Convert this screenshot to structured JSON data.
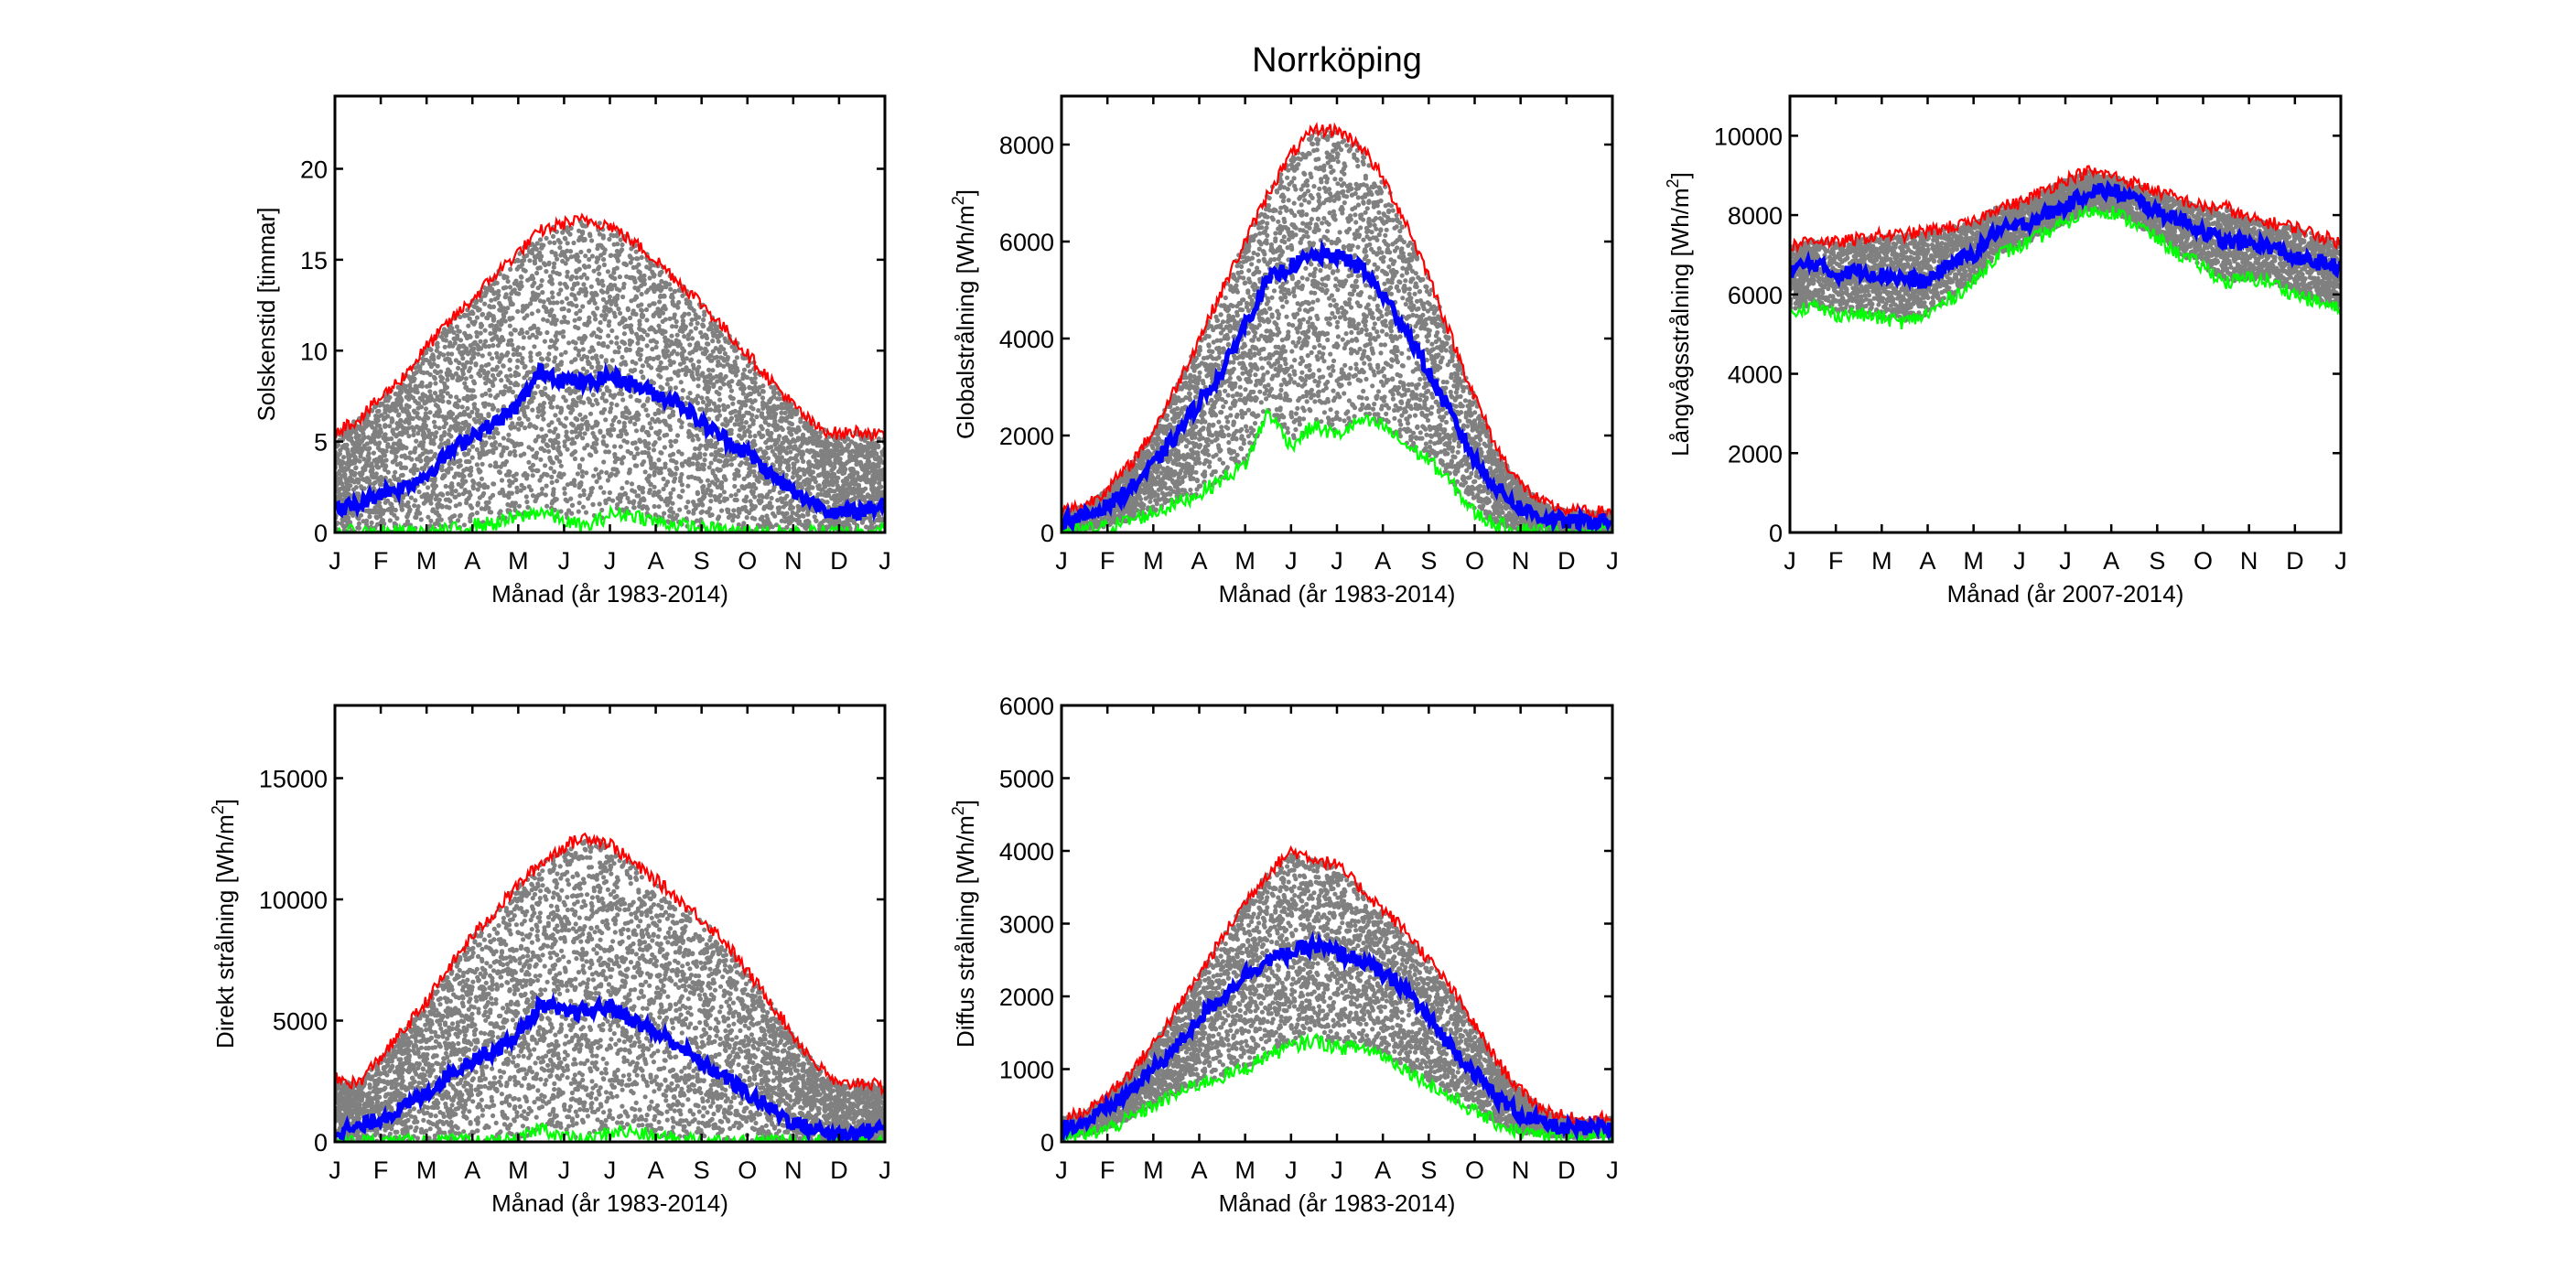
{
  "figure": {
    "title": "Norrköping"
  },
  "colors": {
    "scatter": "#808080",
    "max_line": "#ff0000",
    "mean_line": "#0000ff",
    "min_line": "#00ff00",
    "axes": "#000000"
  },
  "chart_data": [
    {
      "id": "solskenstid",
      "type": "scatter",
      "title": "",
      "xlabel": "Månad (år 1983-2014)",
      "ylabel": "Solskenstid [timmar]",
      "ylabel_sup": "",
      "xticks": [
        "J",
        "F",
        "M",
        "A",
        "M",
        "J",
        "J",
        "A",
        "S",
        "O",
        "N",
        "D",
        "J"
      ],
      "xlim": [
        0,
        12
      ],
      "ylim": [
        0,
        24
      ],
      "yticks": [
        0,
        5,
        10,
        15,
        20
      ],
      "grid": false,
      "series": [
        {
          "name": "max",
          "style": "line",
          "color": "#ff0000",
          "x": [
            0,
            0.5,
            1,
            1.5,
            2,
            2.5,
            3,
            3.5,
            4,
            4.5,
            5,
            5.5,
            6,
            6.5,
            7,
            7.5,
            8,
            8.5,
            9,
            9.5,
            10,
            10.5,
            11,
            11.5,
            12
          ],
          "values": [
            5.6,
            6.2,
            7.4,
            8.6,
            10.2,
            11.6,
            12.8,
            14.2,
            15.4,
            16.6,
            17.0,
            17.2,
            16.9,
            16.0,
            15.0,
            13.8,
            12.6,
            11.2,
            9.8,
            8.4,
            7.0,
            5.8,
            5.4,
            5.6,
            5.2
          ]
        },
        {
          "name": "mean",
          "style": "line",
          "color": "#0000ff",
          "x": [
            0,
            0.5,
            1,
            1.5,
            2,
            2.5,
            3,
            3.5,
            4,
            4.5,
            5,
            5.5,
            6,
            6.5,
            7,
            7.5,
            8,
            8.5,
            9,
            9.5,
            10,
            10.5,
            11,
            11.5,
            12
          ],
          "values": [
            1.3,
            1.5,
            2.2,
            2.5,
            3.2,
            4.4,
            5.4,
            6.0,
            7.0,
            8.9,
            8.4,
            8.2,
            8.6,
            8.2,
            7.6,
            7.2,
            6.0,
            5.2,
            4.4,
            3.2,
            2.2,
            1.6,
            1.0,
            1.2,
            1.6
          ]
        },
        {
          "name": "min",
          "style": "line",
          "color": "#00ff00",
          "x": [
            0,
            0.5,
            1,
            1.5,
            2,
            2.5,
            3,
            3.5,
            4,
            4.5,
            5,
            5.5,
            6,
            6.5,
            7,
            7.5,
            8,
            8.5,
            9,
            9.5,
            10,
            10.5,
            11,
            11.5,
            12
          ],
          "values": [
            0,
            0,
            0,
            0,
            0,
            0.1,
            0.4,
            0.5,
            0.8,
            1.2,
            0.6,
            0.3,
            1.0,
            1.0,
            0.6,
            0.4,
            0.2,
            0.1,
            0,
            0,
            0,
            0,
            0,
            0,
            0.4
          ]
        },
        {
          "name": "daily",
          "style": "scatter",
          "color": "#808080",
          "band": "between min and max"
        }
      ]
    },
    {
      "id": "globalstralning",
      "type": "scatter",
      "title": "",
      "xlabel": "Månad (år 1983-2014)",
      "ylabel": "Globalstrålning [Wh/m",
      "ylabel_sup": "2",
      "ylabel_end": "]",
      "xticks": [
        "J",
        "F",
        "M",
        "A",
        "M",
        "J",
        "J",
        "A",
        "S",
        "O",
        "N",
        "D",
        "J"
      ],
      "xlim": [
        0,
        12
      ],
      "ylim": [
        0,
        9000
      ],
      "yticks": [
        0,
        2000,
        4000,
        6000,
        8000
      ],
      "grid": false,
      "series": [
        {
          "name": "max",
          "style": "line",
          "color": "#ff0000",
          "x": [
            0,
            0.5,
            1,
            1.5,
            2,
            2.5,
            3,
            3.5,
            4,
            4.5,
            5,
            5.5,
            6,
            6.5,
            7,
            7.5,
            8,
            8.5,
            9,
            9.5,
            10,
            10.5,
            11,
            11.5,
            12
          ],
          "values": [
            450,
            550,
            900,
            1400,
            2100,
            3000,
            4000,
            5000,
            6000,
            7000,
            7800,
            8300,
            8300,
            8000,
            7300,
            6400,
            5300,
            4000,
            2800,
            1700,
            1000,
            600,
            450,
            420,
            430
          ]
        },
        {
          "name": "mean",
          "style": "line",
          "color": "#0000ff",
          "x": [
            0,
            0.5,
            1,
            1.5,
            2,
            2.5,
            3,
            3.5,
            4,
            4.5,
            5,
            5.5,
            6,
            6.5,
            7,
            7.5,
            8,
            8.5,
            9,
            9.5,
            10,
            10.5,
            11,
            11.5,
            12
          ],
          "values": [
            250,
            320,
            550,
            900,
            1400,
            2000,
            2700,
            3300,
            4300,
            5200,
            5500,
            5700,
            5700,
            5500,
            4900,
            4200,
            3300,
            2400,
            1500,
            900,
            500,
            300,
            230,
            220,
            240
          ]
        },
        {
          "name": "min",
          "style": "line",
          "color": "#00ff00",
          "x": [
            0,
            0.5,
            1,
            1.5,
            2,
            2.5,
            3,
            3.5,
            4,
            4.5,
            5,
            5.5,
            6,
            6.5,
            7,
            7.5,
            8,
            8.5,
            9,
            9.5,
            10,
            10.5,
            11,
            11.5,
            12
          ],
          "values": [
            30,
            60,
            120,
            250,
            400,
            600,
            800,
            1100,
            1400,
            2500,
            1800,
            2200,
            2000,
            2300,
            2200,
            1800,
            1500,
            1000,
            400,
            150,
            60,
            30,
            20,
            20,
            40
          ]
        },
        {
          "name": "daily",
          "style": "scatter",
          "color": "#808080",
          "band": "between min and max"
        }
      ]
    },
    {
      "id": "langvagsstralning",
      "type": "scatter",
      "title": "",
      "xlabel": "Månad (år 2007-2014)",
      "ylabel": "Långvågsstrålning [Wh/m",
      "ylabel_sup": "2",
      "ylabel_end": "]",
      "xticks": [
        "J",
        "F",
        "M",
        "A",
        "M",
        "J",
        "J",
        "A",
        "S",
        "O",
        "N",
        "D",
        "J"
      ],
      "xlim": [
        0,
        12
      ],
      "ylim": [
        0,
        11000
      ],
      "yticks": [
        0,
        2000,
        4000,
        6000,
        8000,
        10000
      ],
      "grid": false,
      "series": [
        {
          "name": "max",
          "style": "line",
          "color": "#ff0000",
          "x": [
            0,
            0.5,
            1,
            1.5,
            2,
            2.5,
            3,
            3.5,
            4,
            4.5,
            5,
            5.5,
            6,
            6.5,
            7,
            7.5,
            8,
            8.5,
            9,
            9.5,
            10,
            10.5,
            11,
            11.5,
            12
          ],
          "values": [
            7200,
            7400,
            7300,
            7400,
            7500,
            7500,
            7600,
            7700,
            7800,
            8200,
            8300,
            8600,
            8900,
            9100,
            9000,
            8800,
            8600,
            8400,
            8200,
            8200,
            7900,
            7800,
            7700,
            7500,
            7300
          ]
        },
        {
          "name": "mean",
          "style": "line",
          "color": "#0000ff",
          "x": [
            0,
            0.5,
            1,
            1.5,
            2,
            2.5,
            3,
            3.5,
            4,
            4.5,
            5,
            5.5,
            6,
            6.5,
            7,
            7.5,
            8,
            8.5,
            9,
            9.5,
            10,
            10.5,
            11,
            11.5,
            12
          ],
          "values": [
            6600,
            6800,
            6500,
            6600,
            6500,
            6400,
            6300,
            6800,
            7000,
            7600,
            7700,
            8000,
            8200,
            8600,
            8600,
            8400,
            8100,
            7900,
            7600,
            7300,
            7300,
            7200,
            6900,
            6800,
            6700
          ]
        },
        {
          "name": "min",
          "style": "line",
          "color": "#00ff00",
          "x": [
            0,
            0.5,
            1,
            1.5,
            2,
            2.5,
            3,
            3.5,
            4,
            4.5,
            5,
            5.5,
            6,
            6.5,
            7,
            7.5,
            8,
            8.5,
            9,
            9.5,
            10,
            10.5,
            11,
            11.5,
            12
          ],
          "values": [
            5600,
            5700,
            5500,
            5500,
            5400,
            5300,
            5500,
            5900,
            6300,
            7000,
            7200,
            7500,
            7800,
            8100,
            8100,
            7800,
            7400,
            7000,
            6700,
            6300,
            6400,
            6300,
            6000,
            5800,
            5600
          ]
        },
        {
          "name": "daily",
          "style": "scatter",
          "color": "#808080",
          "band": "between min and max"
        }
      ]
    },
    {
      "id": "direkt_stralning",
      "type": "scatter",
      "title": "",
      "xlabel": "Månad (år 1983-2014)",
      "ylabel": "Direkt strålning [Wh/m",
      "ylabel_sup": "2",
      "ylabel_end": "]",
      "xticks": [
        "J",
        "F",
        "M",
        "A",
        "M",
        "J",
        "J",
        "A",
        "S",
        "O",
        "N",
        "D",
        "J"
      ],
      "xlim": [
        0,
        12
      ],
      "ylim": [
        0,
        18000
      ],
      "yticks": [
        0,
        5000,
        10000,
        15000
      ],
      "grid": false,
      "series": [
        {
          "name": "max",
          "style": "line",
          "color": "#ff0000",
          "x": [
            0,
            0.5,
            1,
            1.5,
            2,
            2.5,
            3,
            3.5,
            4,
            4.5,
            5,
            5.5,
            6,
            6.5,
            7,
            7.5,
            8,
            8.5,
            9,
            9.5,
            10,
            10.5,
            11,
            11.5,
            12
          ],
          "values": [
            2600,
            2400,
            3500,
            4600,
            5800,
            7200,
            8500,
            9500,
            10600,
            11500,
            12200,
            12600,
            12300,
            11500,
            10800,
            10000,
            9200,
            8300,
            7000,
            5800,
            4400,
            3200,
            2300,
            2500,
            2200
          ]
        },
        {
          "name": "mean",
          "style": "line",
          "color": "#0000ff",
          "x": [
            0,
            0.5,
            1,
            1.5,
            2,
            2.5,
            3,
            3.5,
            4,
            4.5,
            5,
            5.5,
            6,
            6.5,
            7,
            7.5,
            8,
            8.5,
            9,
            9.5,
            10,
            10.5,
            11,
            11.5,
            12
          ],
          "values": [
            450,
            550,
            1000,
            1400,
            2000,
            2800,
            3400,
            3800,
            4400,
            5700,
            5300,
            5400,
            5600,
            5000,
            4500,
            4000,
            3200,
            2700,
            2000,
            1400,
            800,
            500,
            300,
            400,
            600
          ]
        },
        {
          "name": "min",
          "style": "line",
          "color": "#00ff00",
          "x": [
            0,
            0.5,
            1,
            1.5,
            2,
            2.5,
            3,
            3.5,
            4,
            4.5,
            5,
            5.5,
            6,
            6.5,
            7,
            7.5,
            8,
            8.5,
            9,
            9.5,
            10,
            10.5,
            11,
            11.5,
            12
          ],
          "values": [
            0,
            0,
            0,
            0,
            0,
            0,
            0,
            0,
            0,
            600,
            200,
            0,
            400,
            400,
            200,
            100,
            100,
            0,
            0,
            0,
            0,
            0,
            0,
            0,
            0
          ]
        },
        {
          "name": "daily",
          "style": "scatter",
          "color": "#808080",
          "band": "between min and max"
        }
      ]
    },
    {
      "id": "diffus_stralning",
      "type": "scatter",
      "title": "",
      "xlabel": "Månad (år 1983-2014)",
      "ylabel": "Diffus strålning [Wh/m",
      "ylabel_sup": "2",
      "ylabel_end": "]",
      "xticks": [
        "J",
        "F",
        "M",
        "A",
        "M",
        "J",
        "J",
        "A",
        "S",
        "O",
        "N",
        "D",
        "J"
      ],
      "xlim": [
        0,
        12
      ],
      "ylim": [
        0,
        6000
      ],
      "yticks": [
        0,
        1000,
        2000,
        3000,
        4000,
        5000,
        6000
      ],
      "grid": false,
      "series": [
        {
          "name": "max",
          "style": "line",
          "color": "#ff0000",
          "x": [
            0,
            0.5,
            1,
            1.5,
            2,
            2.5,
            3,
            3.5,
            4,
            4.5,
            5,
            5.5,
            6,
            6.5,
            7,
            7.5,
            8,
            8.5,
            9,
            9.5,
            10,
            10.5,
            11,
            11.5,
            12
          ],
          "values": [
            320,
            400,
            650,
            950,
            1350,
            1800,
            2300,
            2800,
            3300,
            3700,
            4000,
            3900,
            3800,
            3500,
            3200,
            2900,
            2500,
            2100,
            1600,
            1100,
            700,
            450,
            330,
            300,
            330
          ]
        },
        {
          "name": "mean",
          "style": "line",
          "color": "#0000ff",
          "x": [
            0,
            0.5,
            1,
            1.5,
            2,
            2.5,
            3,
            3.5,
            4,
            4.5,
            5,
            5.5,
            6,
            6.5,
            7,
            7.5,
            8,
            8.5,
            9,
            9.5,
            10,
            10.5,
            11,
            11.5,
            12
          ],
          "values": [
            200,
            260,
            450,
            700,
            1000,
            1300,
            1700,
            2000,
            2300,
            2500,
            2600,
            2700,
            2600,
            2500,
            2300,
            2100,
            1700,
            1300,
            950,
            600,
            380,
            250,
            180,
            170,
            200
          ]
        },
        {
          "name": "min",
          "style": "line",
          "color": "#00ff00",
          "x": [
            0,
            0.5,
            1,
            1.5,
            2,
            2.5,
            3,
            3.5,
            4,
            4.5,
            5,
            5.5,
            6,
            6.5,
            7,
            7.5,
            8,
            8.5,
            9,
            9.5,
            10,
            10.5,
            11,
            11.5,
            12
          ],
          "values": [
            60,
            90,
            180,
            320,
            500,
            650,
            800,
            900,
            1000,
            1200,
            1300,
            1400,
            1300,
            1300,
            1200,
            1000,
            800,
            600,
            420,
            250,
            130,
            80,
            60,
            60,
            80
          ]
        },
        {
          "name": "daily",
          "style": "scatter",
          "color": "#808080",
          "band": "between min and max"
        }
      ]
    }
  ]
}
